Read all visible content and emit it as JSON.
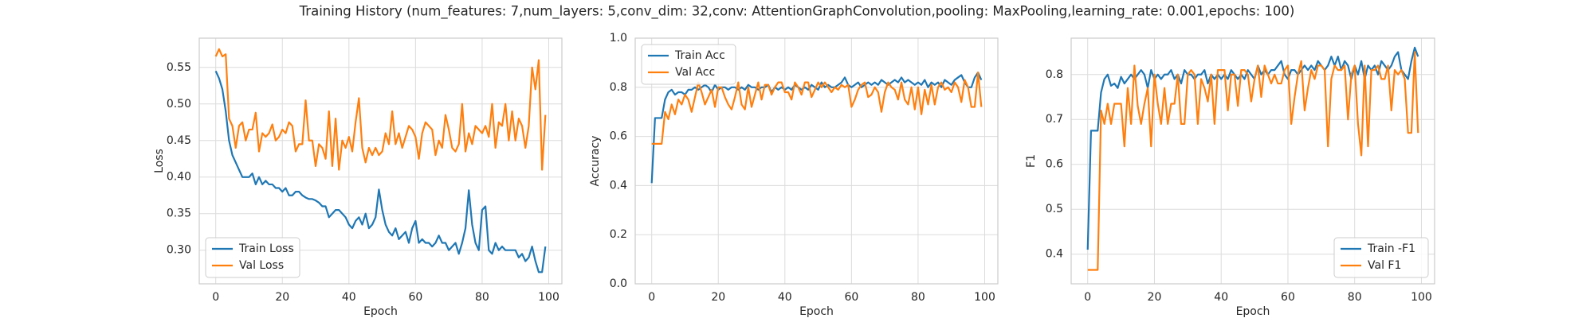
{
  "title": "Training History (num_features: 7,num_layers: 5,conv_dim: 32,conv: AttentionGraphConvolution,pooling: MaxPooling,learning_rate: 0.001,epochs: 100)",
  "chart_data": [
    {
      "type": "line",
      "xlabel": "Epoch",
      "ylabel": "Loss",
      "legend": "lower left",
      "grid": true,
      "xlim": [
        -4.95,
        103.95
      ],
      "xticks": [
        0,
        20,
        40,
        60,
        80,
        100
      ],
      "ylim": [
        0.254,
        0.59
      ],
      "yticks": [
        {
          "value": 0.3,
          "label": "0.30"
        },
        0.35,
        {
          "value": 0.4,
          "label": "0.40"
        },
        0.45,
        {
          "value": 0.5,
          "label": "0.50"
        },
        0.55
      ],
      "x": [
        0,
        1,
        2,
        3,
        4,
        5,
        6,
        7,
        8,
        9,
        10,
        11,
        12,
        13,
        14,
        15,
        16,
        17,
        18,
        19,
        20,
        21,
        22,
        23,
        24,
        25,
        26,
        27,
        28,
        29,
        30,
        31,
        32,
        33,
        34,
        35,
        36,
        37,
        38,
        39,
        40,
        41,
        42,
        43,
        44,
        45,
        46,
        47,
        48,
        49,
        50,
        51,
        52,
        53,
        54,
        55,
        56,
        57,
        58,
        59,
        60,
        61,
        62,
        63,
        64,
        65,
        66,
        67,
        68,
        69,
        70,
        71,
        72,
        73,
        74,
        75,
        76,
        77,
        78,
        79,
        80,
        81,
        82,
        83,
        84,
        85,
        86,
        87,
        88,
        89,
        90,
        91,
        92,
        93,
        94,
        95,
        96,
        97,
        98,
        99
      ],
      "series": [
        {
          "name": "Train Loss",
          "color": "#1f77b4",
          "values": [
            0.545,
            0.535,
            0.52,
            0.49,
            0.45,
            0.43,
            0.42,
            0.41,
            0.4,
            0.4,
            0.4,
            0.405,
            0.39,
            0.4,
            0.39,
            0.395,
            0.39,
            0.39,
            0.385,
            0.385,
            0.38,
            0.385,
            0.375,
            0.375,
            0.38,
            0.38,
            0.375,
            0.372,
            0.37,
            0.37,
            0.368,
            0.365,
            0.36,
            0.36,
            0.345,
            0.35,
            0.355,
            0.355,
            0.35,
            0.345,
            0.335,
            0.33,
            0.34,
            0.345,
            0.335,
            0.35,
            0.33,
            0.335,
            0.345,
            0.383,
            0.355,
            0.335,
            0.325,
            0.32,
            0.33,
            0.315,
            0.32,
            0.325,
            0.31,
            0.33,
            0.34,
            0.31,
            0.315,
            0.31,
            0.31,
            0.305,
            0.31,
            0.32,
            0.31,
            0.31,
            0.3,
            0.305,
            0.31,
            0.295,
            0.31,
            0.33,
            0.382,
            0.335,
            0.31,
            0.3,
            0.355,
            0.36,
            0.3,
            0.295,
            0.31,
            0.3,
            0.305,
            0.3,
            0.3,
            0.3,
            0.3,
            0.29,
            0.295,
            0.285,
            0.29,
            0.305,
            0.285,
            0.27,
            0.27,
            0.305
          ]
        },
        {
          "name": "Val Loss",
          "color": "#ff7f0e",
          "values": [
            0.565,
            0.575,
            0.565,
            0.568,
            0.48,
            0.47,
            0.44,
            0.47,
            0.475,
            0.45,
            0.465,
            0.465,
            0.488,
            0.435,
            0.46,
            0.455,
            0.46,
            0.472,
            0.45,
            0.455,
            0.465,
            0.46,
            0.475,
            0.47,
            0.435,
            0.445,
            0.445,
            0.505,
            0.45,
            0.45,
            0.415,
            0.445,
            0.44,
            0.425,
            0.49,
            0.415,
            0.48,
            0.41,
            0.45,
            0.44,
            0.455,
            0.435,
            0.475,
            0.508,
            0.44,
            0.42,
            0.44,
            0.43,
            0.44,
            0.43,
            0.435,
            0.46,
            0.445,
            0.49,
            0.445,
            0.46,
            0.44,
            0.455,
            0.47,
            0.465,
            0.455,
            0.425,
            0.46,
            0.475,
            0.47,
            0.465,
            0.43,
            0.45,
            0.44,
            0.485,
            0.465,
            0.44,
            0.435,
            0.445,
            0.5,
            0.435,
            0.46,
            0.445,
            0.47,
            0.465,
            0.46,
            0.47,
            0.455,
            0.5,
            0.44,
            0.475,
            0.47,
            0.5,
            0.45,
            0.49,
            0.45,
            0.48,
            0.47,
            0.44,
            0.47,
            0.55,
            0.52,
            0.56,
            0.41,
            0.485
          ]
        }
      ]
    },
    {
      "type": "line",
      "xlabel": "Epoch",
      "ylabel": "Accuracy",
      "legend": "upper left",
      "grid": true,
      "xlim": [
        -4.95,
        103.95
      ],
      "xticks": [
        0,
        20,
        40,
        60,
        80,
        100
      ],
      "ylim": [
        0,
        1.0
      ],
      "yticks": [
        {
          "value": 0,
          "label": "0.0"
        },
        0.2,
        0.4,
        0.6,
        0.8,
        {
          "value": 1.0,
          "label": "1.0"
        }
      ],
      "x": [
        0,
        1,
        2,
        3,
        4,
        5,
        6,
        7,
        8,
        9,
        10,
        11,
        12,
        13,
        14,
        15,
        16,
        17,
        18,
        19,
        20,
        21,
        22,
        23,
        24,
        25,
        26,
        27,
        28,
        29,
        30,
        31,
        32,
        33,
        34,
        35,
        36,
        37,
        38,
        39,
        40,
        41,
        42,
        43,
        44,
        45,
        46,
        47,
        48,
        49,
        50,
        51,
        52,
        53,
        54,
        55,
        56,
        57,
        58,
        59,
        60,
        61,
        62,
        63,
        64,
        65,
        66,
        67,
        68,
        69,
        70,
        71,
        72,
        73,
        74,
        75,
        76,
        77,
        78,
        79,
        80,
        81,
        82,
        83,
        84,
        85,
        86,
        87,
        88,
        89,
        90,
        91,
        92,
        93,
        94,
        95,
        96,
        97,
        98,
        99
      ],
      "series": [
        {
          "name": "Train Acc",
          "color": "#1f77b4",
          "values": [
            0.41,
            0.675,
            0.675,
            0.675,
            0.75,
            0.78,
            0.79,
            0.77,
            0.78,
            0.78,
            0.77,
            0.79,
            0.79,
            0.8,
            0.79,
            0.8,
            0.81,
            0.8,
            0.78,
            0.81,
            0.79,
            0.8,
            0.8,
            0.79,
            0.8,
            0.8,
            0.79,
            0.8,
            0.79,
            0.81,
            0.8,
            0.8,
            0.79,
            0.8,
            0.8,
            0.81,
            0.78,
            0.8,
            0.79,
            0.8,
            0.79,
            0.8,
            0.79,
            0.81,
            0.8,
            0.79,
            0.8,
            0.79,
            0.81,
            0.8,
            0.79,
            0.82,
            0.8,
            0.81,
            0.8,
            0.8,
            0.81,
            0.82,
            0.84,
            0.81,
            0.8,
            0.81,
            0.82,
            0.8,
            0.81,
            0.82,
            0.81,
            0.82,
            0.81,
            0.83,
            0.82,
            0.81,
            0.82,
            0.83,
            0.82,
            0.84,
            0.82,
            0.83,
            0.82,
            0.81,
            0.82,
            0.81,
            0.83,
            0.8,
            0.82,
            0.81,
            0.82,
            0.8,
            0.83,
            0.82,
            0.81,
            0.83,
            0.84,
            0.85,
            0.82,
            0.8,
            0.8,
            0.84,
            0.86,
            0.83
          ]
        },
        {
          "name": "Val Acc",
          "color": "#ff7f0e",
          "values": [
            0.57,
            0.57,
            0.57,
            0.57,
            0.7,
            0.67,
            0.73,
            0.69,
            0.75,
            0.73,
            0.77,
            0.75,
            0.7,
            0.76,
            0.82,
            0.78,
            0.73,
            0.76,
            0.79,
            0.72,
            0.8,
            0.8,
            0.76,
            0.73,
            0.71,
            0.76,
            0.82,
            0.73,
            0.71,
            0.8,
            0.72,
            0.77,
            0.82,
            0.75,
            0.81,
            0.81,
            0.77,
            0.8,
            0.82,
            0.82,
            0.78,
            0.78,
            0.75,
            0.82,
            0.8,
            0.77,
            0.82,
            0.82,
            0.76,
            0.79,
            0.82,
            0.8,
            0.82,
            0.8,
            0.78,
            0.8,
            0.79,
            0.81,
            0.8,
            0.81,
            0.72,
            0.75,
            0.79,
            0.81,
            0.82,
            0.76,
            0.77,
            0.8,
            0.78,
            0.7,
            0.78,
            0.82,
            0.8,
            0.79,
            0.75,
            0.82,
            0.75,
            0.73,
            0.8,
            0.71,
            0.8,
            0.69,
            0.79,
            0.73,
            0.81,
            0.73,
            0.8,
            0.82,
            0.79,
            0.8,
            0.78,
            0.82,
            0.8,
            0.74,
            0.83,
            0.8,
            0.72,
            0.72,
            0.86,
            0.72
          ]
        }
      ]
    },
    {
      "type": "line",
      "xlabel": "Epoch",
      "ylabel": "F1",
      "legend": "lower right",
      "grid": true,
      "xlim": [
        -4.95,
        103.95
      ],
      "xticks": [
        0,
        20,
        40,
        60,
        80,
        100
      ],
      "ylim": [
        0.334,
        0.881
      ],
      "yticks": [
        0.4,
        0.5,
        0.6,
        0.7,
        0.8
      ],
      "x": [
        0,
        1,
        2,
        3,
        4,
        5,
        6,
        7,
        8,
        9,
        10,
        11,
        12,
        13,
        14,
        15,
        16,
        17,
        18,
        19,
        20,
        21,
        22,
        23,
        24,
        25,
        26,
        27,
        28,
        29,
        30,
        31,
        32,
        33,
        34,
        35,
        36,
        37,
        38,
        39,
        40,
        41,
        42,
        43,
        44,
        45,
        46,
        47,
        48,
        49,
        50,
        51,
        52,
        53,
        54,
        55,
        56,
        57,
        58,
        59,
        60,
        61,
        62,
        63,
        64,
        65,
        66,
        67,
        68,
        69,
        70,
        71,
        72,
        73,
        74,
        75,
        76,
        77,
        78,
        79,
        80,
        81,
        82,
        83,
        84,
        85,
        86,
        87,
        88,
        89,
        90,
        91,
        92,
        93,
        94,
        95,
        96,
        97,
        98,
        99
      ],
      "series": [
        {
          "name": "Train -F1",
          "color": "#1f77b4",
          "values": [
            0.41,
            0.675,
            0.675,
            0.675,
            0.76,
            0.79,
            0.8,
            0.775,
            0.78,
            0.77,
            0.795,
            0.78,
            0.79,
            0.8,
            0.79,
            0.8,
            0.81,
            0.8,
            0.77,
            0.81,
            0.79,
            0.8,
            0.79,
            0.8,
            0.8,
            0.81,
            0.79,
            0.8,
            0.78,
            0.81,
            0.8,
            0.8,
            0.79,
            0.8,
            0.8,
            0.81,
            0.78,
            0.8,
            0.79,
            0.8,
            0.79,
            0.8,
            0.79,
            0.81,
            0.8,
            0.79,
            0.8,
            0.79,
            0.81,
            0.8,
            0.79,
            0.82,
            0.8,
            0.81,
            0.8,
            0.81,
            0.81,
            0.82,
            0.83,
            0.8,
            0.79,
            0.81,
            0.81,
            0.8,
            0.81,
            0.82,
            0.81,
            0.82,
            0.81,
            0.83,
            0.82,
            0.81,
            0.82,
            0.84,
            0.82,
            0.84,
            0.81,
            0.83,
            0.82,
            0.79,
            0.82,
            0.8,
            0.83,
            0.79,
            0.82,
            0.81,
            0.82,
            0.8,
            0.83,
            0.82,
            0.81,
            0.82,
            0.84,
            0.85,
            0.81,
            0.8,
            0.79,
            0.83,
            0.86,
            0.84
          ]
        },
        {
          "name": "Val F1",
          "color": "#ff7f0e",
          "values": [
            0.365,
            0.365,
            0.365,
            0.365,
            0.72,
            0.69,
            0.735,
            0.69,
            0.735,
            0.735,
            0.735,
            0.64,
            0.77,
            0.69,
            0.82,
            0.73,
            0.69,
            0.735,
            0.77,
            0.64,
            0.8,
            0.735,
            0.69,
            0.77,
            0.69,
            0.735,
            0.735,
            0.8,
            0.69,
            0.69,
            0.8,
            0.81,
            0.8,
            0.69,
            0.79,
            0.77,
            0.74,
            0.8,
            0.69,
            0.81,
            0.81,
            0.81,
            0.72,
            0.8,
            0.8,
            0.73,
            0.81,
            0.81,
            0.8,
            0.74,
            0.79,
            0.82,
            0.75,
            0.82,
            0.8,
            0.78,
            0.8,
            0.78,
            0.78,
            0.81,
            0.82,
            0.69,
            0.75,
            0.8,
            0.83,
            0.72,
            0.77,
            0.81,
            0.79,
            0.82,
            0.82,
            0.81,
            0.64,
            0.79,
            0.82,
            0.81,
            0.81,
            0.82,
            0.7,
            0.8,
            0.82,
            0.69,
            0.62,
            0.82,
            0.64,
            0.81,
            0.81,
            0.82,
            0.79,
            0.79,
            0.82,
            0.72,
            0.81,
            0.8,
            0.81,
            0.79,
            0.67,
            0.67,
            0.85,
            0.67
          ]
        }
      ]
    }
  ]
}
